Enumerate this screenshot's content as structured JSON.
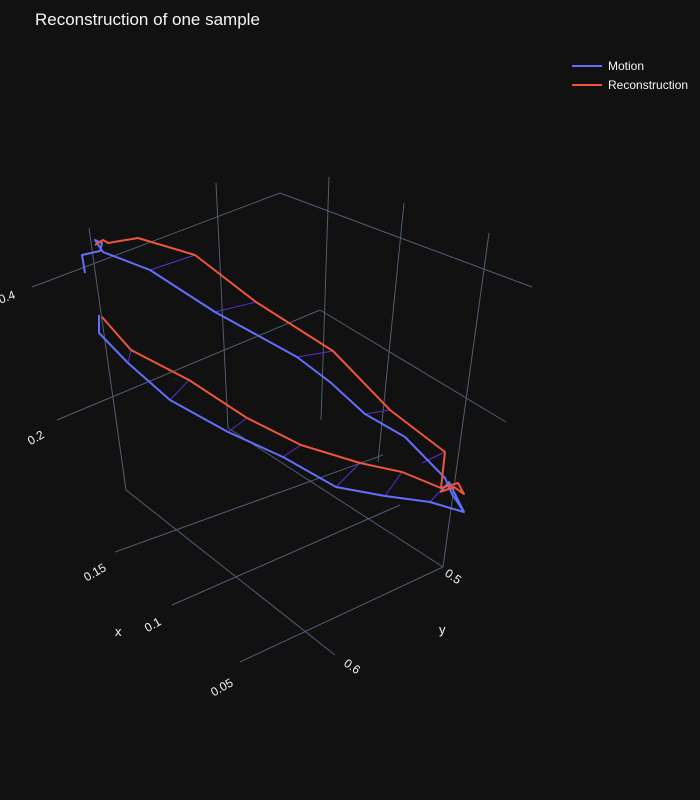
{
  "chart_data": {
    "type": "line3d",
    "title": "Reconstruction of one sample",
    "axes": {
      "x": {
        "label": "x",
        "ticks": [
          "0.05",
          "0.1",
          "0.15"
        ]
      },
      "y": {
        "label": "y",
        "ticks": [
          "0.5",
          "0.6"
        ]
      },
      "z": {
        "label": "",
        "ticks": [
          "0.2",
          "0.4"
        ]
      }
    },
    "legend_position": "top-right",
    "grid": true,
    "series": [
      {
        "name": "Motion",
        "color": "#636efa"
      },
      {
        "name": "Reconstruction",
        "color": "#ef553b"
      }
    ]
  }
}
